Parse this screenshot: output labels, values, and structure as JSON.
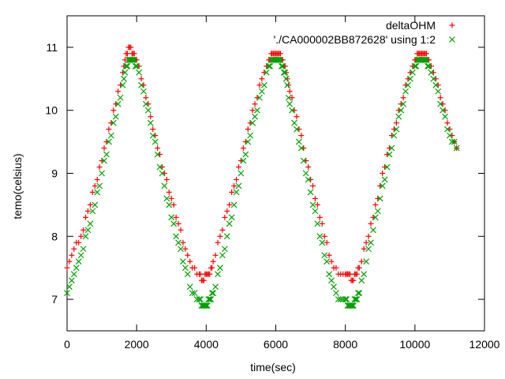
{
  "chart_data": {
    "type": "scatter",
    "xlabel": "time(sec)",
    "ylabel": "temo(celsius)",
    "xlim": [
      0,
      12000
    ],
    "ylim": [
      6.5,
      11.5
    ],
    "xticks": [
      "0",
      "2000",
      "4000",
      "6000",
      "8000",
      "10000",
      "12000"
    ],
    "yticks": [
      "7",
      "8",
      "9",
      "10",
      "11"
    ],
    "grid": false,
    "legend_position": "top-right",
    "series": [
      {
        "name": "deltaOHM",
        "marker": "plus",
        "color": "#ff0000",
        "x": [
          0,
          200,
          400,
          600,
          800,
          1000,
          1200,
          1400,
          1600,
          1700,
          1800,
          1900,
          2000,
          2200,
          2400,
          2600,
          2800,
          3000,
          3200,
          3400,
          3600,
          3800,
          3900,
          4000,
          4100,
          4200,
          4400,
          4600,
          4800,
          5000,
          5200,
          5400,
          5600,
          5800,
          5900,
          6000,
          6100,
          6200,
          6300,
          6400,
          6600,
          6800,
          7000,
          7200,
          7400,
          7600,
          7800,
          8000,
          8100,
          8200,
          8300,
          8400,
          8600,
          8800,
          9000,
          9200,
          9400,
          9600,
          9800,
          10000,
          10100,
          10200,
          10300,
          10400,
          10600,
          10800,
          11000,
          11200
        ],
        "y": [
          7.5,
          7.8,
          8.0,
          8.4,
          8.8,
          9.2,
          9.7,
          10.1,
          10.6,
          10.9,
          11.0,
          10.9,
          10.8,
          10.4,
          9.9,
          9.4,
          9.0,
          8.6,
          8.2,
          7.8,
          7.5,
          7.4,
          7.3,
          7.4,
          7.4,
          7.6,
          8.0,
          8.4,
          8.8,
          9.2,
          9.7,
          10.1,
          10.5,
          10.8,
          10.9,
          10.9,
          10.9,
          10.8,
          10.6,
          10.3,
          9.9,
          9.4,
          8.9,
          8.5,
          8.0,
          7.6,
          7.4,
          7.4,
          7.4,
          7.3,
          7.4,
          7.5,
          7.9,
          8.3,
          8.8,
          9.3,
          9.7,
          10.1,
          10.5,
          10.8,
          10.9,
          10.9,
          10.9,
          10.8,
          10.5,
          10.1,
          9.7,
          9.4
        ]
      },
      {
        "name": "'./CA000002BB872628' using 1:2",
        "marker": "cross",
        "color": "#00a000",
        "x": [
          0,
          200,
          400,
          600,
          800,
          1000,
          1200,
          1400,
          1600,
          1700,
          1800,
          1900,
          2000,
          2200,
          2400,
          2600,
          2800,
          3000,
          3200,
          3400,
          3600,
          3800,
          3900,
          4000,
          4100,
          4200,
          4400,
          4600,
          4800,
          5000,
          5200,
          5400,
          5600,
          5800,
          5900,
          6000,
          6100,
          6200,
          6300,
          6400,
          6600,
          6800,
          7000,
          7200,
          7400,
          7600,
          7800,
          8000,
          8100,
          8200,
          8300,
          8400,
          8600,
          8800,
          9000,
          9200,
          9400,
          9600,
          9800,
          10000,
          10100,
          10200,
          10300,
          10400,
          10600,
          10800,
          11000,
          11200
        ],
        "y": [
          7.1,
          7.4,
          7.7,
          8.1,
          8.5,
          9.0,
          9.5,
          9.9,
          10.4,
          10.7,
          10.8,
          10.8,
          10.7,
          10.3,
          9.8,
          9.3,
          8.8,
          8.3,
          7.9,
          7.5,
          7.1,
          7.0,
          6.9,
          6.9,
          7.0,
          7.1,
          7.5,
          8.0,
          8.5,
          9.0,
          9.5,
          9.9,
          10.3,
          10.7,
          10.8,
          10.8,
          10.8,
          10.7,
          10.5,
          10.1,
          9.7,
          9.2,
          8.7,
          8.2,
          7.7,
          7.3,
          7.0,
          7.0,
          6.9,
          6.9,
          7.0,
          7.1,
          7.6,
          8.1,
          8.6,
          9.1,
          9.6,
          10.0,
          10.4,
          10.7,
          10.8,
          10.8,
          10.8,
          10.7,
          10.4,
          10.0,
          9.6,
          9.4
        ]
      }
    ]
  }
}
